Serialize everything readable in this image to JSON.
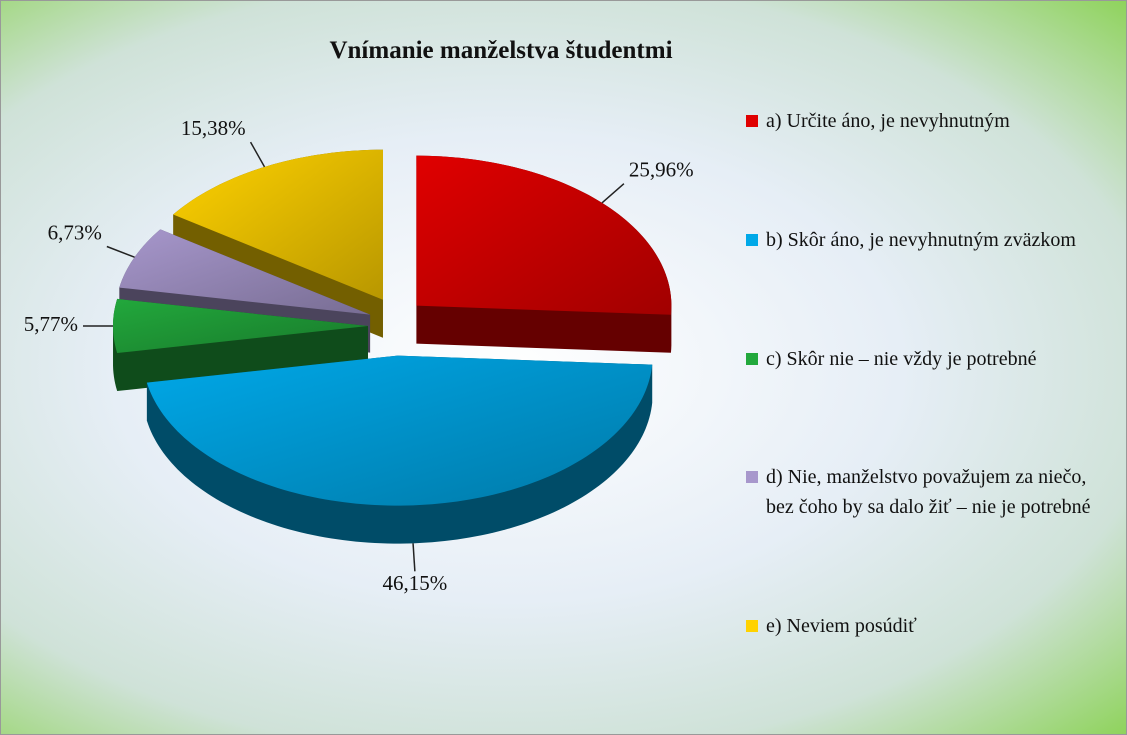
{
  "chart_data": {
    "type": "pie",
    "title": "Vnímanie manželstva študentmi",
    "categories": [
      "a) Určite áno, je nevyhnutným",
      "b) Skôr áno, je nevyhnutným zväzkom",
      "c) Skôr nie – nie vždy je potrebné",
      "d) Nie, manželstvo považujem za niečo, bez čoho by sa dalo žiť – nie je potrebné",
      "e) Neviem posúdiť"
    ],
    "values": [
      25.96,
      46.15,
      5.77,
      6.73,
      15.38
    ],
    "value_labels": [
      "25,96%",
      "46,15%",
      "5,77%",
      "6,73%",
      "15,38%"
    ],
    "colors": [
      "#e00000",
      "#00a8e8",
      "#22a83c",
      "#a797cc",
      "#ffd200"
    ],
    "legend": "right"
  }
}
